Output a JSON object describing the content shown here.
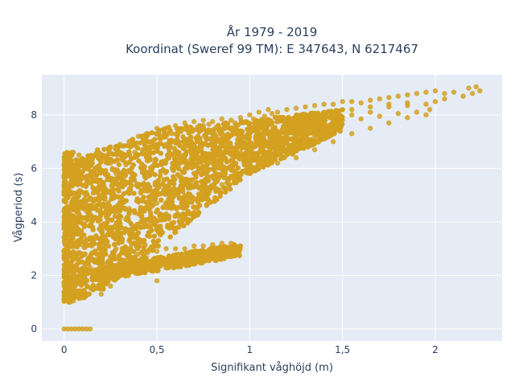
{
  "chart_data": {
    "type": "scatter",
    "title_line1": "År 1979 - 2019",
    "title_line2": "Koordinat (Sweref 99 TM): E 347643, N 6217467",
    "xlabel": "Signifikant våghöjd (m)",
    "ylabel": "Vågperiod (s)",
    "xlim": [
      -0.12,
      2.36
    ],
    "ylim": [
      -0.45,
      9.5
    ],
    "xticks": [
      {
        "value": 0,
        "label": "0"
      },
      {
        "value": 0.5,
        "label": "0,5"
      },
      {
        "value": 1,
        "label": "1"
      },
      {
        "value": 1.5,
        "label": "1,5"
      },
      {
        "value": 2,
        "label": "2"
      }
    ],
    "yticks": [
      {
        "value": 0,
        "label": "0"
      },
      {
        "value": 2,
        "label": "2"
      },
      {
        "value": 4,
        "label": "4"
      },
      {
        "value": 6,
        "label": "6"
      },
      {
        "value": 8,
        "label": "8"
      }
    ],
    "grid": true,
    "marker_color": "#d4a020",
    "plot_background": "#e5ecf6",
    "series": [
      {
        "points": [
          [
            0.0,
            0.0
          ],
          [
            0.02,
            0.0
          ],
          [
            0.04,
            0.0
          ],
          [
            0.06,
            0.0
          ],
          [
            0.08,
            0.0
          ],
          [
            0.1,
            0.0
          ],
          [
            0.12,
            0.0
          ],
          [
            0.14,
            0.0
          ],
          [
            0.0,
            1.6
          ],
          [
            0.0,
            1.1
          ],
          [
            0.0,
            1.4
          ],
          [
            0.02,
            1.1
          ],
          [
            0.03,
            1.0
          ],
          [
            0.05,
            1.05
          ],
          [
            0.02,
            1.3
          ],
          [
            0.03,
            6.5
          ],
          [
            0.05,
            6.6
          ],
          [
            0.04,
            6.3
          ],
          [
            0.07,
            6.0
          ],
          [
            0.1,
            6.1
          ],
          [
            0.02,
            5.9
          ],
          [
            0.05,
            5.6
          ],
          [
            0.08,
            6.5
          ],
          [
            0.12,
            6.3
          ],
          [
            0.15,
            6.4
          ],
          [
            0.18,
            6.7
          ],
          [
            0.2,
            6.5
          ],
          [
            0.25,
            6.8
          ],
          [
            0.3,
            6.9
          ],
          [
            0.35,
            7.0
          ],
          [
            0.4,
            7.2
          ],
          [
            0.45,
            7.3
          ],
          [
            0.5,
            7.5
          ],
          [
            0.55,
            7.5
          ],
          [
            0.6,
            7.6
          ],
          [
            0.65,
            7.7
          ],
          [
            0.7,
            7.75
          ],
          [
            0.75,
            7.8
          ],
          [
            0.8,
            7.75
          ],
          [
            0.85,
            7.85
          ],
          [
            0.9,
            7.8
          ],
          [
            0.95,
            7.9
          ],
          [
            1.0,
            8.0
          ],
          [
            1.05,
            8.1
          ],
          [
            1.1,
            8.2
          ],
          [
            1.15,
            8.1
          ],
          [
            1.2,
            8.2
          ],
          [
            1.25,
            8.25
          ],
          [
            1.3,
            8.3
          ],
          [
            1.35,
            8.35
          ],
          [
            1.4,
            8.4
          ],
          [
            1.45,
            8.4
          ],
          [
            1.5,
            8.5
          ],
          [
            1.55,
            8.5
          ],
          [
            1.6,
            8.45
          ],
          [
            1.65,
            8.55
          ],
          [
            1.7,
            8.6
          ],
          [
            1.75,
            8.65
          ],
          [
            1.8,
            8.7
          ],
          [
            1.85,
            8.75
          ],
          [
            1.9,
            8.8
          ],
          [
            1.95,
            8.85
          ],
          [
            2.0,
            8.9
          ],
          [
            2.05,
            8.8
          ],
          [
            2.1,
            8.85
          ],
          [
            2.15,
            8.7
          ],
          [
            2.18,
            9.0
          ],
          [
            2.2,
            8.8
          ],
          [
            2.22,
            9.05
          ],
          [
            2.24,
            8.9
          ],
          [
            2.0,
            8.5
          ],
          [
            1.97,
            8.2
          ],
          [
            1.9,
            8.1
          ],
          [
            1.8,
            8.05
          ],
          [
            1.7,
            7.95
          ],
          [
            1.6,
            7.85
          ],
          [
            1.5,
            7.8
          ],
          [
            1.4,
            7.5
          ],
          [
            1.35,
            7.2
          ],
          [
            1.3,
            6.9
          ],
          [
            1.25,
            6.85
          ],
          [
            1.2,
            6.7
          ],
          [
            1.1,
            6.5
          ],
          [
            1.0,
            6.3
          ],
          [
            0.9,
            6.0
          ],
          [
            0.8,
            5.7
          ],
          [
            0.7,
            5.4
          ],
          [
            0.6,
            5.0
          ],
          [
            0.5,
            4.7
          ],
          [
            0.4,
            4.3
          ],
          [
            0.3,
            3.8
          ],
          [
            0.2,
            3.4
          ],
          [
            0.15,
            3.1
          ],
          [
            0.2,
            2.4
          ],
          [
            0.25,
            2.5
          ],
          [
            0.3,
            2.6
          ],
          [
            0.35,
            2.7
          ],
          [
            0.4,
            2.8
          ],
          [
            0.45,
            2.85
          ],
          [
            0.5,
            2.9
          ],
          [
            0.55,
            3.0
          ],
          [
            0.6,
            3.0
          ],
          [
            0.65,
            3.0
          ],
          [
            0.7,
            3.1
          ],
          [
            0.75,
            3.1
          ],
          [
            0.8,
            3.15
          ],
          [
            0.85,
            3.2
          ],
          [
            0.9,
            3.2
          ],
          [
            0.95,
            3.1
          ],
          [
            0.5,
            1.8
          ],
          [
            0.3,
            2.2
          ],
          [
            0.25,
            1.6
          ],
          [
            0.15,
            1.5
          ],
          [
            0.1,
            1.2
          ],
          [
            0.2,
            1.3
          ],
          [
            0.35,
            2.1
          ],
          [
            0.6,
            2.6
          ],
          [
            0.7,
            2.7
          ],
          [
            0.8,
            2.9
          ],
          [
            0.5,
            2.5
          ],
          [
            0.55,
            2.3
          ],
          [
            0.4,
            2.3
          ],
          [
            0.45,
            4.6
          ],
          [
            0.35,
            4.5
          ],
          [
            0.55,
            5.2
          ],
          [
            0.65,
            5.6
          ],
          [
            0.75,
            5.9
          ],
          [
            0.85,
            6.4
          ],
          [
            0.95,
            6.6
          ],
          [
            1.05,
            7.0
          ],
          [
            1.15,
            7.2
          ],
          [
            1.25,
            7.4
          ],
          [
            1.45,
            7.7
          ],
          [
            1.55,
            8.0
          ],
          [
            1.65,
            8.1
          ],
          [
            1.75,
            8.3
          ],
          [
            1.85,
            8.35
          ],
          [
            1.95,
            8.4
          ],
          [
            2.05,
            8.6
          ],
          [
            0.45,
            7.0
          ],
          [
            0.55,
            7.2
          ],
          [
            0.65,
            6.8
          ],
          [
            0.75,
            7.6
          ],
          [
            0.85,
            7.2
          ],
          [
            0.95,
            7.4
          ],
          [
            1.05,
            7.6
          ],
          [
            1.15,
            7.8
          ],
          [
            1.25,
            7.9
          ],
          [
            1.35,
            8.0
          ],
          [
            1.45,
            8.1
          ],
          [
            1.55,
            8.2
          ],
          [
            1.65,
            8.3
          ],
          [
            1.75,
            8.4
          ],
          [
            1.85,
            8.45
          ],
          [
            0.25,
            6.2
          ],
          [
            0.28,
            5.8
          ],
          [
            0.15,
            5.7
          ],
          [
            0.12,
            5.4
          ],
          [
            0.22,
            4.9
          ],
          [
            0.08,
            4.5
          ],
          [
            0.06,
            3.8
          ],
          [
            0.07,
            3.2
          ],
          [
            0.05,
            2.8
          ],
          [
            0.09,
            2.5
          ],
          [
            0.1,
            2.0
          ],
          [
            0.12,
            1.8
          ],
          [
            0.14,
            2.3
          ],
          [
            0.18,
            2.6
          ],
          [
            0.06,
            4.9
          ],
          [
            0.1,
            5.1
          ],
          [
            0.18,
            5.5
          ],
          [
            0.26,
            6.0
          ],
          [
            0.32,
            6.4
          ],
          [
            0.38,
            6.6
          ],
          [
            0.42,
            6.7
          ],
          [
            0.48,
            6.9
          ],
          [
            0.52,
            7.1
          ],
          [
            0.58,
            7.3
          ],
          [
            0.62,
            7.4
          ],
          [
            0.68,
            7.45
          ],
          [
            0.72,
            7.55
          ],
          [
            0.78,
            7.65
          ],
          [
            0.82,
            7.55
          ],
          [
            0.88,
            7.65
          ],
          [
            0.92,
            7.7
          ],
          [
            0.98,
            7.75
          ],
          [
            1.02,
            7.85
          ],
          [
            1.08,
            7.95
          ],
          [
            1.12,
            8.05
          ],
          [
            0.3,
            4.1
          ],
          [
            0.4,
            3.6
          ],
          [
            0.35,
            3.3
          ],
          [
            0.28,
            3.0
          ],
          [
            0.45,
            3.9
          ],
          [
            0.55,
            4.3
          ],
          [
            0.65,
            4.7
          ],
          [
            0.75,
            5.1
          ],
          [
            0.85,
            5.4
          ],
          [
            0.95,
            5.8
          ],
          [
            1.05,
            6.0
          ],
          [
            1.15,
            6.2
          ],
          [
            1.25,
            6.4
          ],
          [
            1.35,
            6.7
          ],
          [
            1.45,
            7.0
          ],
          [
            1.55,
            7.3
          ],
          [
            1.65,
            7.5
          ],
          [
            1.75,
            7.7
          ],
          [
            1.85,
            7.9
          ],
          [
            1.95,
            8.0
          ],
          [
            0.2,
            1.9
          ],
          [
            0.28,
            2.0
          ],
          [
            0.38,
            2.4
          ],
          [
            0.48,
            2.6
          ],
          [
            0.58,
            2.7
          ],
          [
            0.68,
            2.8
          ],
          [
            0.78,
            2.95
          ],
          [
            0.88,
            3.05
          ],
          [
            0.04,
            2.2
          ],
          [
            0.06,
            1.7
          ],
          [
            0.08,
            1.4
          ],
          [
            0.03,
            3.5
          ],
          [
            0.02,
            4.2
          ],
          [
            0.04,
            4.7
          ],
          [
            0.03,
            5.3
          ]
        ]
      }
    ]
  }
}
